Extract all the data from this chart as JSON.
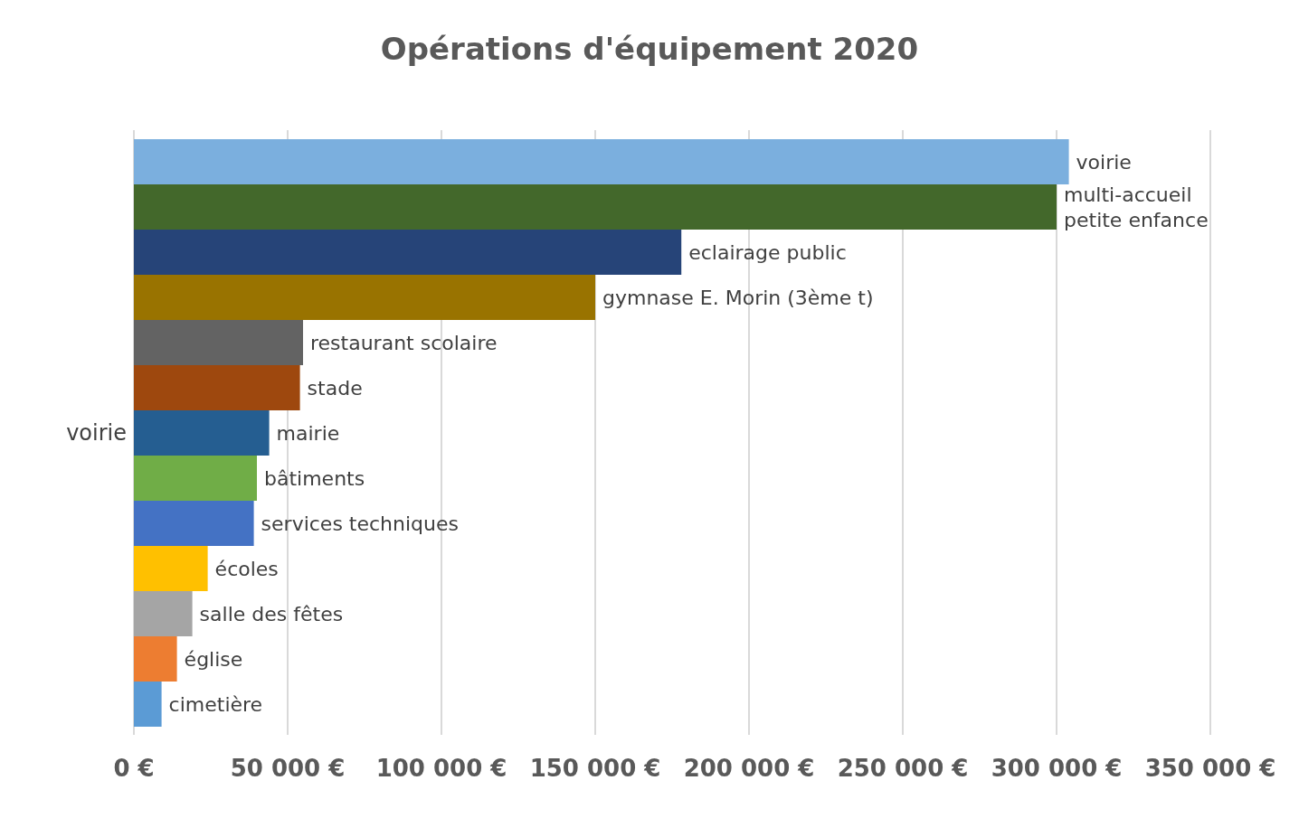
{
  "chart_data": {
    "type": "bar",
    "orientation": "horizontal",
    "title": "Opérations d'équipement 2020",
    "categories": [
      "voirie"
    ],
    "series": [
      {
        "name": "voirie",
        "color": "#7bafde",
        "values": [
          304000
        ]
      },
      {
        "name": "multi-accueil petite enfance",
        "color": "#43682b",
        "values": [
          300000
        ]
      },
      {
        "name": "eclairage public",
        "color": "#264478",
        "values": [
          178000
        ]
      },
      {
        "name": "gymnase E. Morin (3ème t)",
        "color": "#997300",
        "values": [
          150000
        ]
      },
      {
        "name": "restaurant scolaire",
        "color": "#636363",
        "values": [
          55000
        ]
      },
      {
        "name": "stade",
        "color": "#9e480e",
        "values": [
          54000
        ]
      },
      {
        "name": "mairie",
        "color": "#255e91",
        "values": [
          44000
        ]
      },
      {
        "name": "bâtiments",
        "color": "#70ad47",
        "values": [
          40000
        ]
      },
      {
        "name": "services techniques",
        "color": "#4472c4",
        "values": [
          39000
        ]
      },
      {
        "name": "écoles",
        "color": "#ffc000",
        "values": [
          24000
        ]
      },
      {
        "name": "salle des fêtes",
        "color": "#a5a5a5",
        "values": [
          19000
        ]
      },
      {
        "name": "église",
        "color": "#ed7d31",
        "values": [
          14000
        ]
      },
      {
        "name": "cimetière",
        "color": "#5b9bd5",
        "values": [
          9000
        ]
      }
    ],
    "xlim": [
      0,
      350000
    ],
    "xticks": [
      {
        "value": 0,
        "label": "0 €"
      },
      {
        "value": 50000,
        "label": "50 000 €"
      },
      {
        "value": 100000,
        "label": "100 000 €"
      },
      {
        "value": 150000,
        "label": "150 000 €"
      },
      {
        "value": 200000,
        "label": "200 000 €"
      },
      {
        "value": 250000,
        "label": "250 000 €"
      },
      {
        "value": 300000,
        "label": "300 000 €"
      },
      {
        "value": 350000,
        "label": "350 000 €"
      }
    ],
    "grid": "x",
    "legend": false
  }
}
